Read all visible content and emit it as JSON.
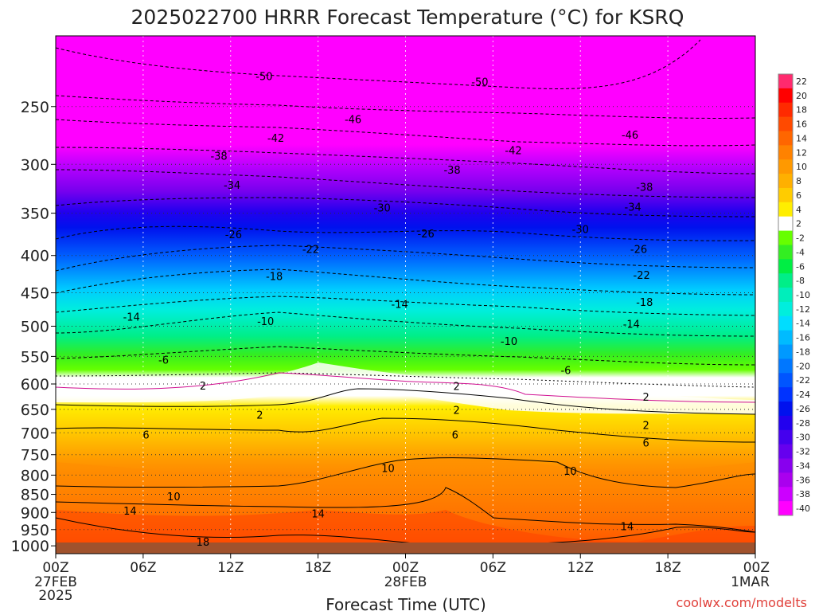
{
  "title": "2025022700 HRRR Forecast Temperature (°C) for KSRQ",
  "xlabel": "Forecast Time (UTC)",
  "credit": "coolwx.com/modelts",
  "x_ticks": [
    {
      "hour": 0,
      "label": "00Z",
      "sub": [
        "27FEB",
        "2025"
      ]
    },
    {
      "hour": 6,
      "label": "06Z",
      "sub": []
    },
    {
      "hour": 12,
      "label": "12Z",
      "sub": []
    },
    {
      "hour": 18,
      "label": "18Z",
      "sub": []
    },
    {
      "hour": 24,
      "label": "00Z",
      "sub": [
        "28FEB"
      ]
    },
    {
      "hour": 30,
      "label": "06Z",
      "sub": []
    },
    {
      "hour": 36,
      "label": "12Z",
      "sub": []
    },
    {
      "hour": 42,
      "label": "18Z",
      "sub": []
    },
    {
      "hour": 48,
      "label": "00Z",
      "sub": [
        "1MAR"
      ]
    }
  ],
  "y_ticks": [
    "250",
    "300",
    "350",
    "400",
    "450",
    "500",
    "550",
    "600",
    "650",
    "700",
    "750",
    "800",
    "850",
    "900",
    "950",
    "1000"
  ],
  "colorbar": {
    "stops": [
      {
        "label": "22",
        "color": "#ff2a6e"
      },
      {
        "label": "20",
        "color": "#ff0000"
      },
      {
        "label": "18",
        "color": "#ff2a00"
      },
      {
        "label": "16",
        "color": "#ff4a00"
      },
      {
        "label": "14",
        "color": "#ff6600"
      },
      {
        "label": "12",
        "color": "#ff8200"
      },
      {
        "label": "10",
        "color": "#ff9900"
      },
      {
        "label": "8",
        "color": "#ffb000"
      },
      {
        "label": "6",
        "color": "#ffcc00"
      },
      {
        "label": "4",
        "color": "#ffee00"
      },
      {
        "label": "2",
        "color": "#ffffff"
      },
      {
        "label": "-2",
        "color": "#66ff00"
      },
      {
        "label": "-4",
        "color": "#33ee22"
      },
      {
        "label": "-6",
        "color": "#00ee44"
      },
      {
        "label": "-8",
        "color": "#00ee88"
      },
      {
        "label": "-10",
        "color": "#00eebb"
      },
      {
        "label": "-12",
        "color": "#00eedd"
      },
      {
        "label": "-14",
        "color": "#00ddff"
      },
      {
        "label": "-16",
        "color": "#00bbff"
      },
      {
        "label": "-18",
        "color": "#0099ff"
      },
      {
        "label": "-20",
        "color": "#0077ff"
      },
      {
        "label": "-22",
        "color": "#0055ff"
      },
      {
        "label": "-24",
        "color": "#0033ff"
      },
      {
        "label": "-26",
        "color": "#0011ee"
      },
      {
        "label": "-28",
        "color": "#2200ee"
      },
      {
        "label": "-30",
        "color": "#4400ee"
      },
      {
        "label": "-32",
        "color": "#6600ee"
      },
      {
        "label": "-34",
        "color": "#8800ee"
      },
      {
        "label": "-36",
        "color": "#aa00ee"
      },
      {
        "label": "-38",
        "color": "#cc00ff"
      },
      {
        "label": "-40",
        "color": "#ff00ff"
      }
    ]
  },
  "chart_data": {
    "type": "heatmap",
    "title": "2025022700 HRRR Forecast Temperature (°C) for KSRQ",
    "xlabel": "Forecast Time (UTC)",
    "ylabel": "",
    "x_range_hours": [
      0,
      48
    ],
    "y_range_hpa": [
      200,
      1025
    ],
    "y_scale": "log",
    "y_inverted": true,
    "contour_labels": [
      {
        "value": "-50",
        "hour": 14.3,
        "hpa": 227
      },
      {
        "value": "-50",
        "hour": 29.1,
        "hpa": 231
      },
      {
        "value": "-46",
        "hour": 20.4,
        "hpa": 260
      },
      {
        "value": "-46",
        "hour": 39.4,
        "hpa": 273
      },
      {
        "value": "-42",
        "hour": 15.1,
        "hpa": 276
      },
      {
        "value": "-42",
        "hour": 31.4,
        "hpa": 287
      },
      {
        "value": "-38",
        "hour": 11.2,
        "hpa": 292
      },
      {
        "value": "-38",
        "hour": 27.2,
        "hpa": 305
      },
      {
        "value": "-38",
        "hour": 40.4,
        "hpa": 322
      },
      {
        "value": "-34",
        "hour": 12.1,
        "hpa": 320
      },
      {
        "value": "-34",
        "hour": 39.6,
        "hpa": 343
      },
      {
        "value": "-30",
        "hour": 22.4,
        "hpa": 344
      },
      {
        "value": "-30",
        "hour": 36.0,
        "hpa": 368
      },
      {
        "value": "-26",
        "hour": 12.2,
        "hpa": 374
      },
      {
        "value": "-26",
        "hour": 25.4,
        "hpa": 373
      },
      {
        "value": "-26",
        "hour": 40.0,
        "hpa": 392
      },
      {
        "value": "-22",
        "hour": 17.5,
        "hpa": 392
      },
      {
        "value": "-22",
        "hour": 40.2,
        "hpa": 425
      },
      {
        "value": "-18",
        "hour": 15.0,
        "hpa": 427
      },
      {
        "value": "-18",
        "hour": 40.4,
        "hpa": 463
      },
      {
        "value": "-14",
        "hour": 5.2,
        "hpa": 485
      },
      {
        "value": "-14",
        "hour": 23.6,
        "hpa": 466
      },
      {
        "value": "-14",
        "hour": 39.5,
        "hpa": 496
      },
      {
        "value": "-10",
        "hour": 14.4,
        "hpa": 492
      },
      {
        "value": "-10",
        "hour": 31.1,
        "hpa": 524
      },
      {
        "value": "-6",
        "hour": 7.4,
        "hpa": 556
      },
      {
        "value": "-6",
        "hour": 35.0,
        "hpa": 574
      },
      {
        "value": "2",
        "hour": 10.1,
        "hpa": 603
      },
      {
        "value": "2",
        "hour": 27.5,
        "hpa": 604
      },
      {
        "value": "2",
        "hour": 40.5,
        "hpa": 625
      },
      {
        "value": "2",
        "hour": 14.0,
        "hpa": 661
      },
      {
        "value": "2",
        "hour": 27.5,
        "hpa": 651
      },
      {
        "value": "2",
        "hour": 40.5,
        "hpa": 683
      },
      {
        "value": "6",
        "hour": 6.2,
        "hpa": 704
      },
      {
        "value": "6",
        "hour": 27.4,
        "hpa": 704
      },
      {
        "value": "6",
        "hour": 40.5,
        "hpa": 722
      },
      {
        "value": "10",
        "hour": 22.8,
        "hpa": 782
      },
      {
        "value": "10",
        "hour": 35.3,
        "hpa": 789
      },
      {
        "value": "10",
        "hour": 8.1,
        "hpa": 855
      },
      {
        "value": "14",
        "hour": 5.1,
        "hpa": 895
      },
      {
        "value": "14",
        "hour": 18.0,
        "hpa": 903
      },
      {
        "value": "14",
        "hour": 39.2,
        "hpa": 940
      },
      {
        "value": "18",
        "hour": 10.1,
        "hpa": 987
      }
    ]
  }
}
